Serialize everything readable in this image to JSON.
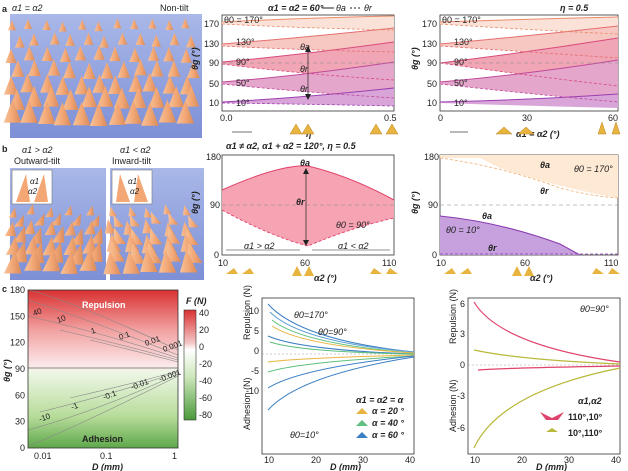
{
  "figure": {
    "panels": {
      "a": {
        "label": "a",
        "image_left": {
          "title_left": "α1 = α2",
          "title_right": "Non-tilt"
        },
        "plot1": {
          "header": "α1 = α2 = 60°",
          "legend": {
            "advancing": "θa",
            "receding": "θr"
          },
          "ylabel": "θg (°)",
          "xlabel": "η",
          "yticks": [
            "10",
            "50",
            "90",
            "130",
            "170"
          ],
          "xticks": [
            "0.0",
            "0.5"
          ],
          "theta0_labels": [
            "θ0 = 170°",
            "130°",
            "90°",
            "50°",
            "10°"
          ],
          "markers": [
            "θa",
            "θr",
            "θr"
          ]
        },
        "plot2": {
          "header": "η = 0.5",
          "ylabel": "θg (°)",
          "xlabel": "α1 = α2 (°)",
          "yticks": [
            "10",
            "50",
            "90",
            "130",
            "170"
          ],
          "xticks": [
            "0",
            "30",
            "60"
          ],
          "theta0_labels": [
            "θ0 = 170°",
            "130°",
            "90°",
            "50°",
            "10°"
          ]
        }
      },
      "b": {
        "label": "b",
        "image_left": {
          "title": "α1 > α2",
          "subtitle": "Outward-tilt",
          "inset": [
            "α1",
            "α2"
          ]
        },
        "image_right": {
          "title": "α1 < α2",
          "subtitle": "Inward-tilt",
          "inset": [
            "α1",
            "α2"
          ]
        },
        "plot1": {
          "header": "α1 ≠ α2,  α1 + α2 = 120°,  η = 0.5",
          "ylabel": "θg (°)",
          "xlabel": "α2 (°)",
          "yticks": [
            "0",
            "90",
            "180"
          ],
          "xticks": [
            "10",
            "60",
            "110"
          ],
          "annotations": [
            "θa",
            "θr",
            "θ0 = 90°",
            "α1 > α2",
            "α1 < α2"
          ]
        },
        "plot2": {
          "ylabel": "θg (°)",
          "xlabel": "α2 (°)",
          "yticks": [
            "0",
            "90",
            "180"
          ],
          "xticks": [
            "10",
            "60",
            "110"
          ],
          "annotations": [
            "θa",
            "θr",
            "θ0 = 170°",
            "θa",
            "θ0 = 10°",
            "θr"
          ]
        }
      },
      "c": {
        "label": "c",
        "heatmap": {
          "ylabel": "θg (°)",
          "xlabel": "D (mm)",
          "yticks": [
            "0",
            "30",
            "60",
            "90",
            "120",
            "150",
            "180"
          ],
          "xticks": [
            "0.01",
            "0.1",
            "1"
          ],
          "region_top": "Repulsion",
          "region_bottom": "Adhesion",
          "colorbar_title": "F (N)",
          "colorbar_ticks": [
            "40",
            "20",
            "0",
            "-20",
            "-40",
            "-60",
            "-80"
          ],
          "contour_labels": [
            "40",
            "10",
            "1",
            "0.1",
            "0.01",
            "0.001",
            "-10",
            "-1",
            "-0.1",
            "-0.01",
            "-0.001"
          ]
        },
        "plot2": {
          "ylabel_top": "Repulsion (N)",
          "ylabel_bottom": "Adhesion (N)",
          "xlabel": "D (mm)",
          "xticks": [
            "10",
            "20",
            "30",
            "40"
          ],
          "yticks": [
            "10",
            "5",
            "0",
            "-5",
            "-10"
          ],
          "annotations": [
            "θ0=170°",
            "θ0=90°",
            "θ0=10°"
          ],
          "legend_title": "α1 = α2 = α",
          "legend": [
            "α = 20 °",
            "α = 40 °",
            "α = 60 °"
          ],
          "legend_colors": [
            "#e8b440",
            "#5fc07f",
            "#3b7fc4"
          ]
        },
        "plot3": {
          "header": "θ0=90°",
          "ylabel_top": "Repulsion (N)",
          "ylabel_bottom": "Adhesion (N)",
          "xlabel": "D (mm)",
          "xticks": [
            "10",
            "20",
            "30",
            "40"
          ],
          "yticks": [
            "6",
            "3",
            "0",
            "-3",
            "-6"
          ],
          "legend_title": "α1,α2",
          "legend": [
            "110°,10°",
            "10°,110°"
          ],
          "legend_colors": [
            "#e0436b",
            "#b8b83a"
          ]
        }
      }
    }
  }
}
